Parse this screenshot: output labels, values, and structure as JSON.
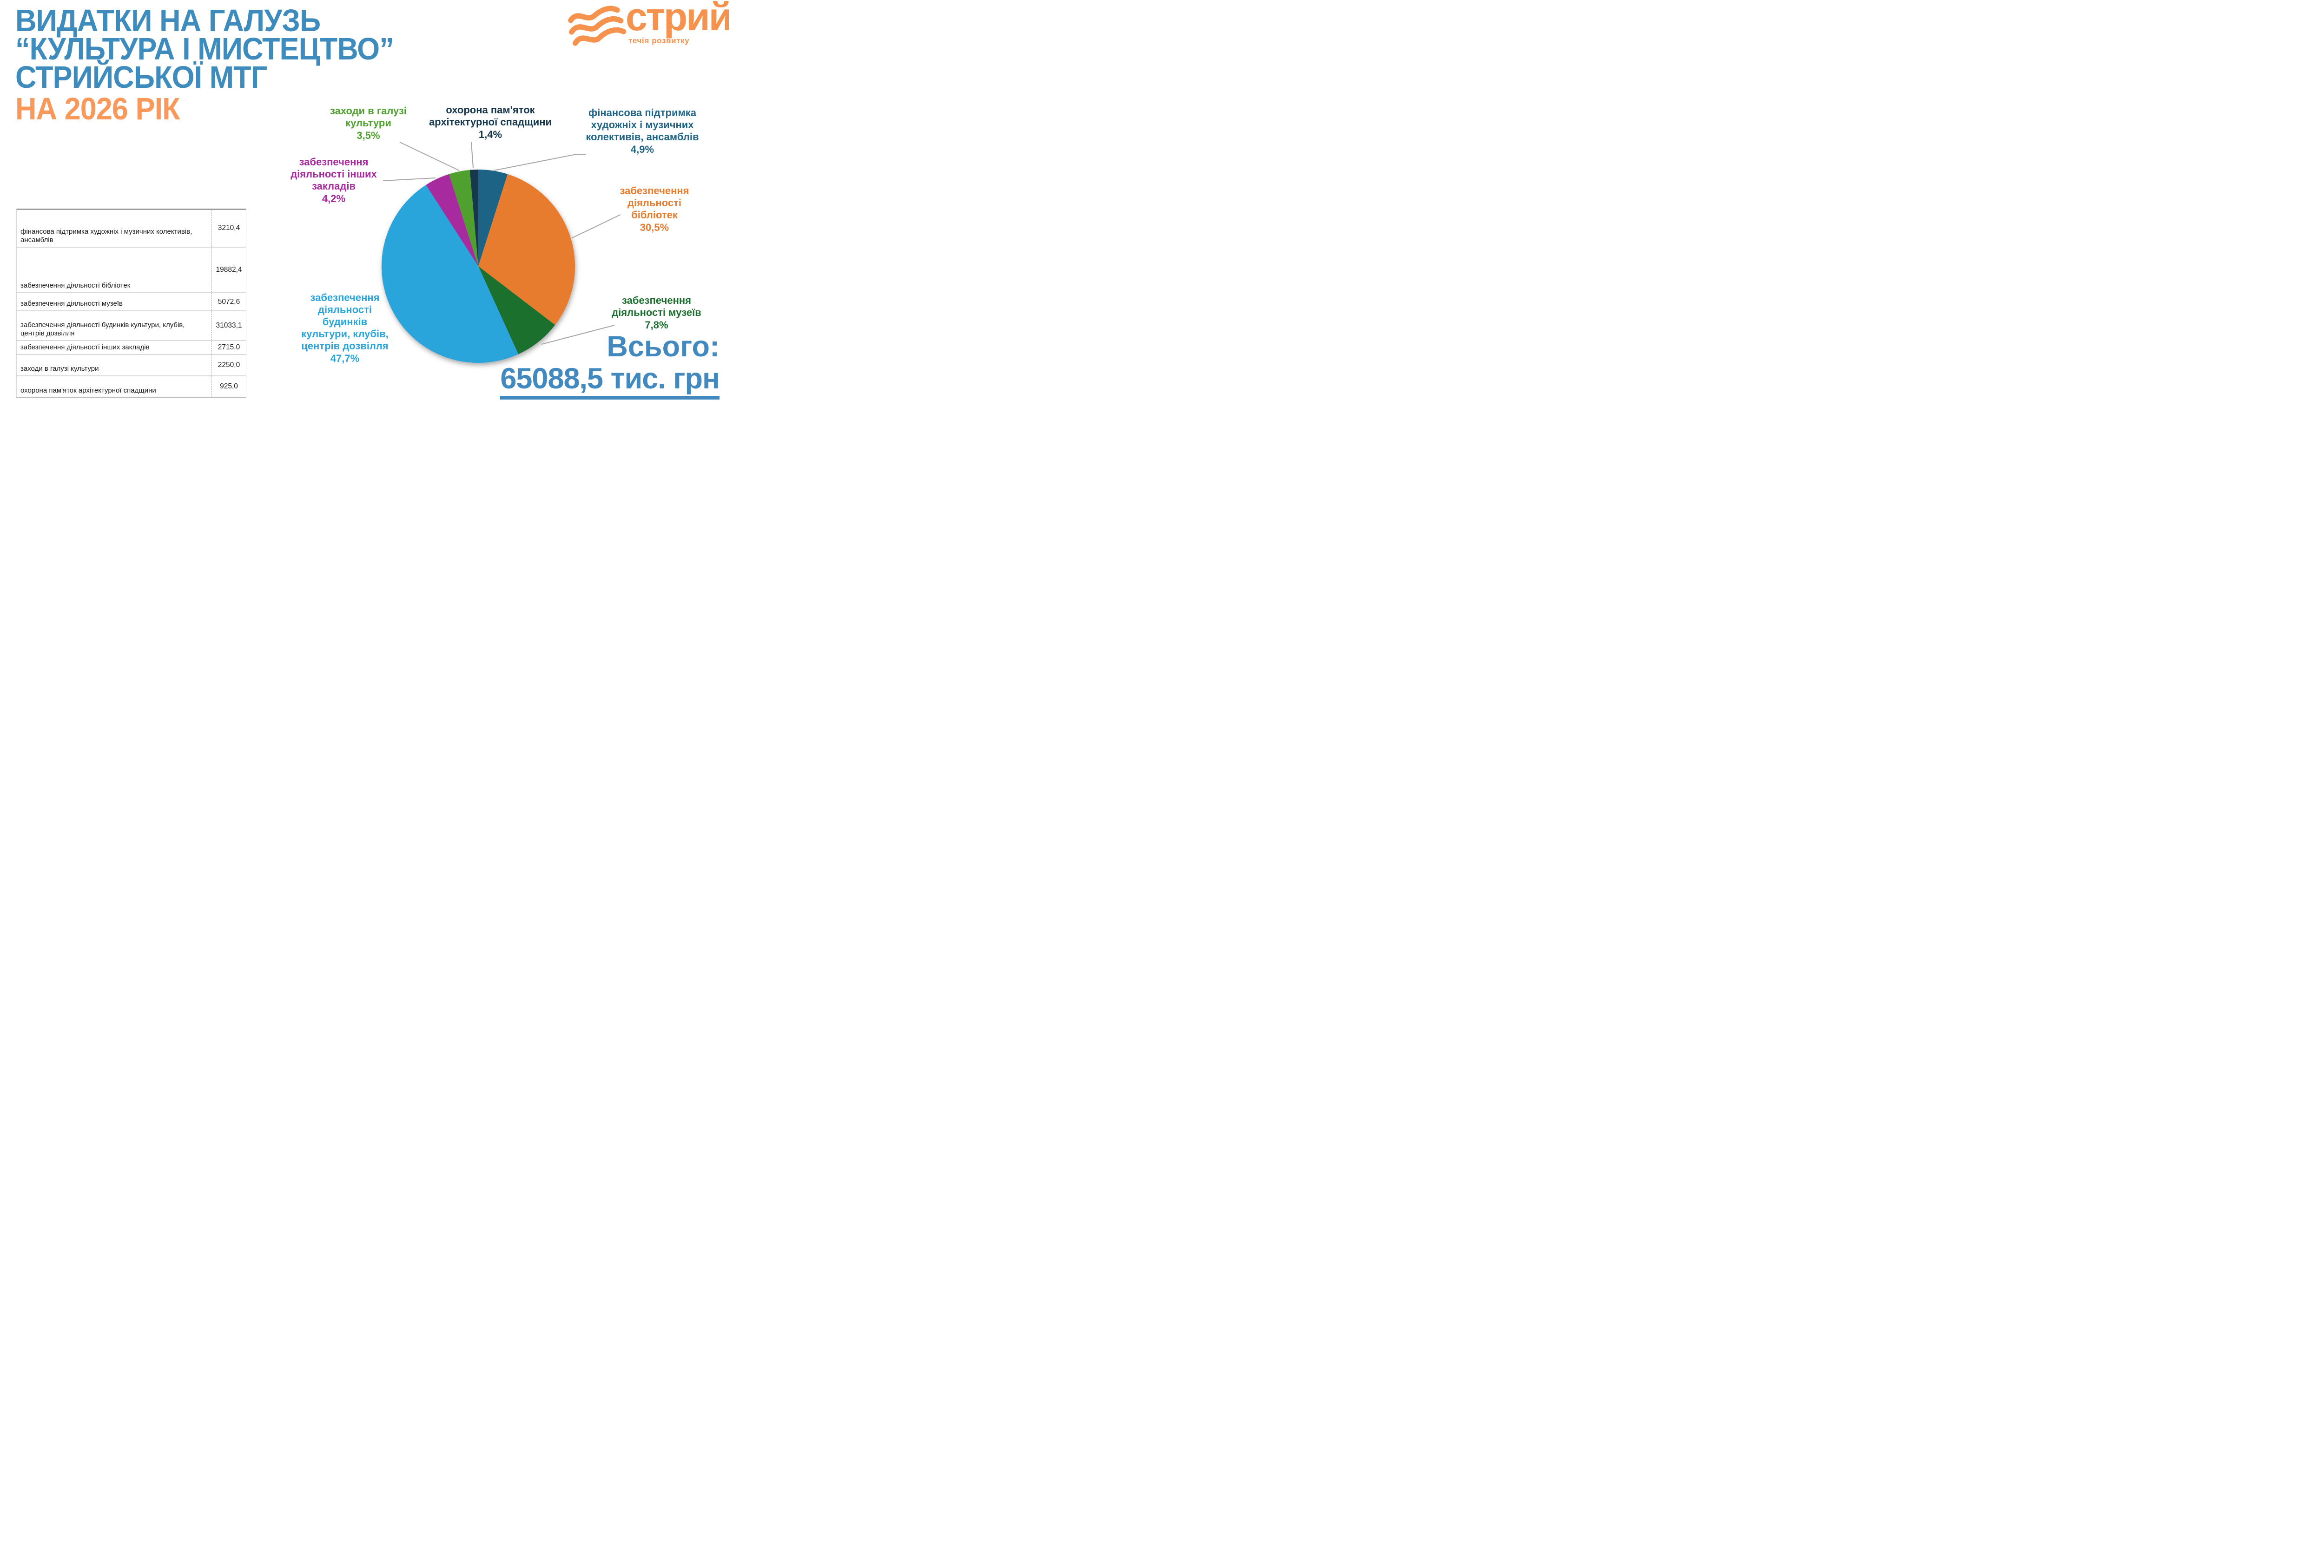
{
  "title": {
    "line1": "ВИДАТКИ НА ГАЛУЗЬ",
    "line2": "“КУЛЬТУРА І МИСТЕЦТВО”",
    "line3": "СТРИЙСЬКОЇ МТГ",
    "subtitle": "НА 2026 РІК"
  },
  "logo": {
    "name": "стрий",
    "tagline": "течія розвитку"
  },
  "table": {
    "rows": [
      {
        "label": "фінансова підтримка художніх і музичних колективів, ансамблів",
        "value": "3210,4"
      },
      {
        "label": "забезпечення діяльності бібліотек",
        "value": "19882,4"
      },
      {
        "label": "забезпечення діяльності музеїв",
        "value": "5072,6"
      },
      {
        "label": "забезпечення діяльності будинків культури, клубів, центрів дозвілля",
        "value": "31033,1"
      },
      {
        "label": "забезпечення діяльності інших закладів",
        "value": "2715,0"
      },
      {
        "label": "заходи в галузі культури",
        "value": "2250,0"
      },
      {
        "label": "охорона пам'яток архітектурної спадщини",
        "value": "925,0"
      }
    ]
  },
  "chart_data": {
    "type": "pie",
    "unit": "тис. грн",
    "start_angle_deg": -5.04,
    "legend_position": "outside-callouts",
    "leader_line_color": "#A6A6A6",
    "slices": [
      {
        "label": "охорона пам'яток архітектурної спадщини",
        "percent_label": "1,4%",
        "percent": 1.4,
        "amount": 925.0,
        "color": "#16384E"
      },
      {
        "label": "фінансова підтримка художніх і музичних колективів, ансамблів",
        "percent_label": "4,9%",
        "percent": 4.9,
        "amount": 3210.4,
        "color": "#1F6486"
      },
      {
        "label": "забезпечення діяльності бібліотек",
        "percent_label": "30,5%",
        "percent": 30.5,
        "amount": 19882.4,
        "color": "#E77C2E"
      },
      {
        "label": "забезпечення діяльності музеїв",
        "percent_label": "7,8%",
        "percent": 7.8,
        "amount": 5072.6,
        "color": "#1D6F2F"
      },
      {
        "label": "забезпечення діяльності будинків культури, клубів, центрів дозвілля",
        "percent_label": "47,7%",
        "percent": 47.7,
        "amount": 31033.1,
        "color": "#29A5DC"
      },
      {
        "label": "забезпечення діяльності інших закладів",
        "percent_label": "4,2%",
        "percent": 4.2,
        "amount": 2715.0,
        "color": "#A82C9F"
      },
      {
        "label": "заходи в галузі культури",
        "percent_label": "3,5%",
        "percent": 3.5,
        "amount": 2250.0,
        "color": "#4FA02F"
      }
    ]
  },
  "total": {
    "label": "Всього:",
    "value": "65088,5 тис. грн"
  },
  "colors": {
    "title": "#3E8CBE",
    "subtitle": "#F8995B",
    "total": "#4189BE",
    "logo": "#F5924D",
    "text": "#1a1a1a"
  }
}
